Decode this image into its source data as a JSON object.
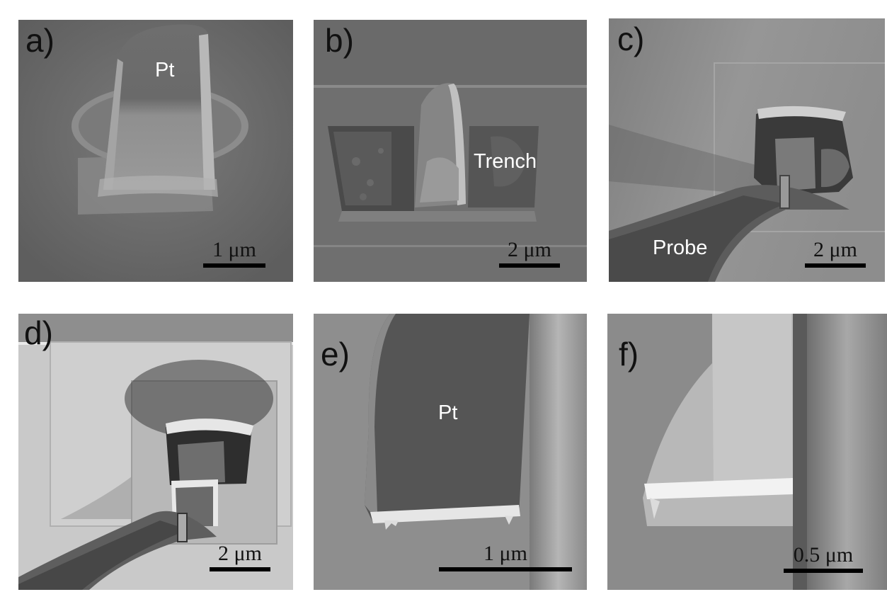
{
  "panels": [
    {
      "id": "a",
      "label": "a)",
      "scale": "1 μm",
      "annotations": [
        "Pt"
      ]
    },
    {
      "id": "b",
      "label": "b)",
      "scale": "2 μm",
      "annotations": [
        "Trench"
      ]
    },
    {
      "id": "c",
      "label": "c)",
      "scale": "2 μm",
      "annotations": [
        "Probe"
      ]
    },
    {
      "id": "d",
      "label": "d)",
      "scale": "2 μm",
      "annotations": []
    },
    {
      "id": "e",
      "label": "e)",
      "scale": "1 μm",
      "annotations": [
        "Pt"
      ]
    },
    {
      "id": "f",
      "label": "f)",
      "scale": "0.5 μm",
      "annotations": []
    }
  ]
}
